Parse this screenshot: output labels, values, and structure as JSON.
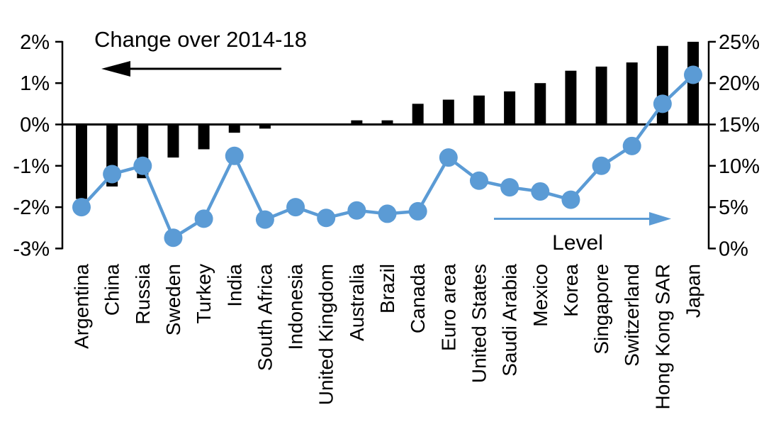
{
  "figure": {
    "background": "#ffffff",
    "bar_color": "#000000",
    "line_color": "#5B9BD5"
  },
  "annotations": {
    "change": {
      "text": "Change over 2014-18",
      "arrow_direction": "left",
      "color": "#000000"
    },
    "level": {
      "text": "Level",
      "arrow_direction": "right",
      "color": "#5B9BD5"
    }
  },
  "chart_data": {
    "type": "bar",
    "combo": "dual-axis bar + line with circle markers",
    "title": "Change over 2014-18 (bars, left axis) vs Level (line, right axis)",
    "categories": [
      "Argentina",
      "China",
      "Russia",
      "Sweden",
      "Turkey",
      "India",
      "South Africa",
      "Indonesia",
      "United Kingdom",
      "Australia",
      "Brazil",
      "Canada",
      "Euro area",
      "United States",
      "Saudi Arabia",
      "Mexico",
      "Korea",
      "Singapore",
      "Switzerland",
      "Hong Kong SAR",
      "Japan"
    ],
    "series": [
      {
        "name": "Change over 2014-18",
        "type": "bar",
        "axis": "left",
        "color": "#000000",
        "values": [
          -1.8,
          -1.5,
          -1.3,
          -0.8,
          -0.6,
          -0.2,
          -0.1,
          0.0,
          0.0,
          0.1,
          0.1,
          0.5,
          0.6,
          0.7,
          0.8,
          1.0,
          1.3,
          1.4,
          1.5,
          1.9,
          2.0
        ]
      },
      {
        "name": "Level",
        "type": "line",
        "axis": "right",
        "color": "#5B9BD5",
        "values": [
          5.0,
          9.0,
          10.0,
          1.3,
          3.6,
          11.2,
          3.5,
          5.0,
          3.7,
          4.6,
          4.2,
          4.5,
          11.0,
          8.2,
          7.4,
          6.9,
          5.9,
          10.0,
          12.4,
          17.5,
          21.0
        ]
      }
    ],
    "left_axis": {
      "min": -3,
      "max": 2,
      "unit": "%",
      "ticks": [
        2,
        1,
        0,
        -1,
        -2,
        -3
      ],
      "tick_labels": [
        "2%",
        "1%",
        "0%",
        "-1%",
        "-2%",
        "-3%"
      ]
    },
    "right_axis": {
      "min": 0,
      "max": 25,
      "unit": "%",
      "ticks": [
        25,
        20,
        15,
        10,
        5,
        0
      ],
      "tick_labels": [
        "25%",
        "20%",
        "15%",
        "10%",
        "5%",
        "0%"
      ]
    },
    "grid": false,
    "legend_position": "none (in-plot text annotations with directional arrows)"
  }
}
